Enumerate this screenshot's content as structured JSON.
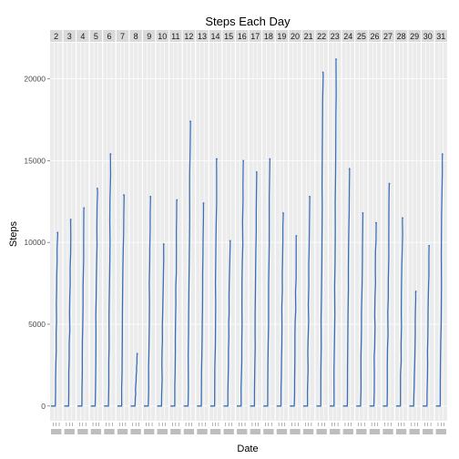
{
  "chart_data": {
    "type": "line",
    "title": "Steps Each Day",
    "xlabel": "Date",
    "ylabel": "Steps",
    "y_ticks": [
      0,
      5000,
      10000,
      15000,
      20000
    ],
    "ylim": [
      -900,
      22200
    ],
    "grid": true,
    "legend": "none",
    "series_color": "#3b6fb6",
    "panel_bg": "#ebebeb",
    "strip_bg": "#d9d9d9",
    "facets": [
      {
        "label": "2",
        "peak": 10600
      },
      {
        "label": "3",
        "peak": 11400
      },
      {
        "label": "4",
        "peak": 12100
      },
      {
        "label": "5",
        "peak": 13300
      },
      {
        "label": "6",
        "peak": 15400
      },
      {
        "label": "7",
        "peak": 12900
      },
      {
        "label": "8",
        "peak": 3200
      },
      {
        "label": "9",
        "peak": 12800
      },
      {
        "label": "10",
        "peak": 9900
      },
      {
        "label": "11",
        "peak": 12600
      },
      {
        "label": "12",
        "peak": 17400
      },
      {
        "label": "13",
        "peak": 12400
      },
      {
        "label": "14",
        "peak": 15100
      },
      {
        "label": "15",
        "peak": 10100
      },
      {
        "label": "16",
        "peak": 15000
      },
      {
        "label": "17",
        "peak": 14300
      },
      {
        "label": "18",
        "peak": 15100
      },
      {
        "label": "19",
        "peak": 11800
      },
      {
        "label": "20",
        "peak": 10400
      },
      {
        "label": "21",
        "peak": 12800
      },
      {
        "label": "22",
        "peak": 20400
      },
      {
        "label": "23",
        "peak": 21200
      },
      {
        "label": "24",
        "peak": 14500
      },
      {
        "label": "25",
        "peak": 11800
      },
      {
        "label": "26",
        "peak": 11200
      },
      {
        "label": "27",
        "peak": 13600
      },
      {
        "label": "28",
        "peak": 11500
      },
      {
        "label": "29",
        "peak": 7000
      },
      {
        "label": "30",
        "peak": 9800
      },
      {
        "label": "31",
        "peak": 15400
      }
    ]
  }
}
